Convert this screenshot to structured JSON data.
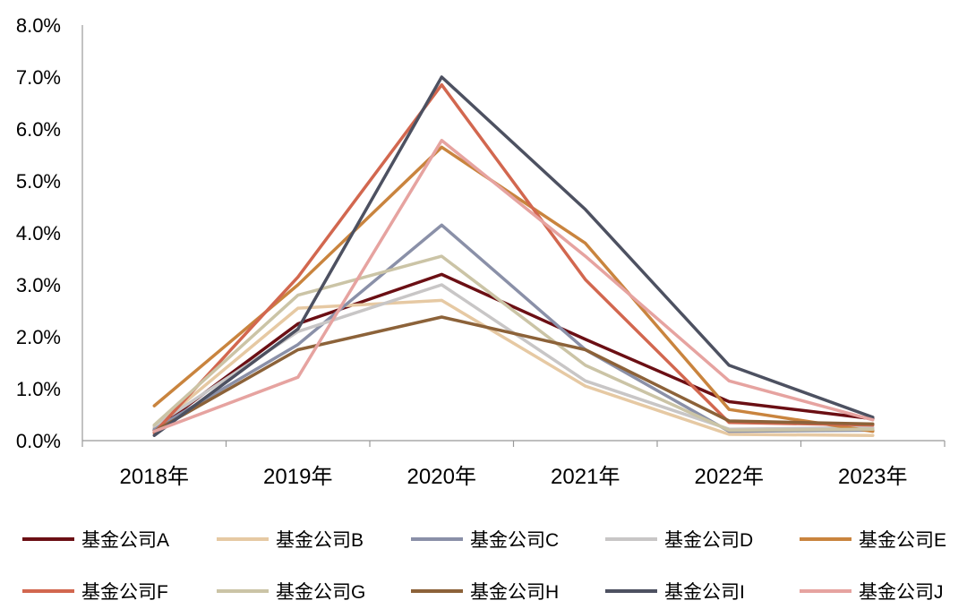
{
  "chart_data": {
    "type": "line",
    "x": [
      "2018年",
      "2019年",
      "2020年",
      "2021年",
      "2022年",
      "2023年"
    ],
    "ylim": [
      0,
      8
    ],
    "yticks": [
      "0.0%",
      "1.0%",
      "2.0%",
      "3.0%",
      "4.0%",
      "5.0%",
      "6.0%",
      "7.0%",
      "8.0%"
    ],
    "grid": false,
    "legend_position": "bottom",
    "series": [
      {
        "name": "基金公司A",
        "color": "#6b0f14",
        "values": [
          0.2,
          2.25,
          3.2,
          1.95,
          0.75,
          0.42
        ]
      },
      {
        "name": "基金公司B",
        "color": "#e6c9a3",
        "values": [
          0.25,
          2.55,
          2.7,
          1.05,
          0.12,
          0.1
        ]
      },
      {
        "name": "基金公司C",
        "color": "#8a90a8",
        "values": [
          0.22,
          1.85,
          4.15,
          1.75,
          0.18,
          0.2
        ]
      },
      {
        "name": "基金公司D",
        "color": "#c8c6c6",
        "values": [
          0.28,
          2.1,
          3.0,
          1.15,
          0.22,
          0.25
        ]
      },
      {
        "name": "基金公司E",
        "color": "#c9843e",
        "values": [
          0.67,
          3.0,
          5.65,
          3.8,
          0.6,
          0.18
        ]
      },
      {
        "name": "基金公司F",
        "color": "#d2674f",
        "values": [
          0.15,
          3.15,
          6.85,
          3.1,
          0.35,
          0.3
        ]
      },
      {
        "name": "基金公司G",
        "color": "#cbc4a6",
        "values": [
          0.3,
          2.8,
          3.55,
          1.45,
          0.2,
          0.22
        ]
      },
      {
        "name": "基金公司H",
        "color": "#8c6239",
        "values": [
          0.18,
          1.75,
          2.38,
          1.75,
          0.38,
          0.32
        ]
      },
      {
        "name": "基金公司I",
        "color": "#4d5161",
        "values": [
          0.1,
          2.15,
          7.0,
          4.45,
          1.45,
          0.45
        ]
      },
      {
        "name": "基金公司J",
        "color": "#e6a3a0",
        "values": [
          0.18,
          1.22,
          5.78,
          3.55,
          1.15,
          0.4
        ]
      }
    ]
  }
}
